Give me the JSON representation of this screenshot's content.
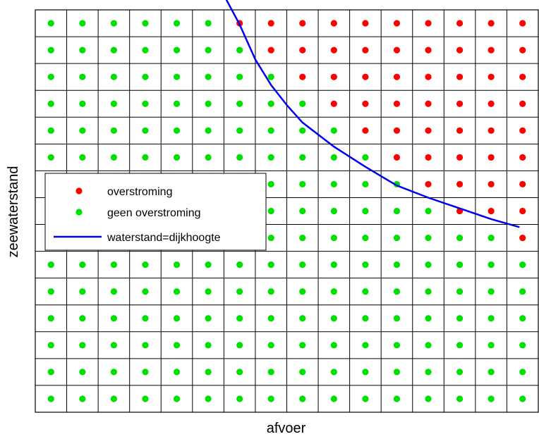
{
  "chart_data": {
    "type": "scatter",
    "xlabel": "afvoer",
    "ylabel": "zeewaterstand",
    "title": "",
    "grid": true,
    "tick_labels_shown": false,
    "x_grid": [
      1,
      2,
      3,
      4,
      5,
      6,
      7,
      8,
      9,
      10,
      11,
      12,
      13,
      14,
      15,
      16
    ],
    "y_grid": [
      1,
      2,
      3,
      4,
      5,
      6,
      7,
      8,
      9,
      10,
      11,
      12,
      13,
      14,
      15
    ],
    "flood_threshold_row_by_column": [
      16,
      16,
      16,
      16,
      16,
      16,
      15,
      14,
      13,
      12,
      11,
      10,
      9,
      8,
      8,
      7
    ],
    "series": [
      {
        "name": "overstroming",
        "marker": "dot",
        "color": "#ff0000"
      },
      {
        "name": "geen overstroming",
        "marker": "dot",
        "color": "#00e000"
      },
      {
        "name": "waterstand=dijkhoogte",
        "marker": "line",
        "color": "#0000ee"
      }
    ],
    "curve": {
      "name": "waterstand=dijkhoogte",
      "x": [
        6.5,
        7.0,
        7.5,
        8.0,
        8.5,
        9.0,
        10.0,
        11.0,
        12.0,
        13.0,
        14.0,
        15.0,
        15.9
      ],
      "y": [
        16.05,
        14.95,
        13.65,
        12.7,
        11.95,
        11.3,
        10.4,
        9.65,
        8.95,
        8.5,
        8.1,
        7.7,
        7.4
      ]
    },
    "legend": {
      "position": "left-middle",
      "entries": [
        "overstroming",
        "geen overstroming",
        "waterstand=dijkhoogte"
      ]
    }
  }
}
